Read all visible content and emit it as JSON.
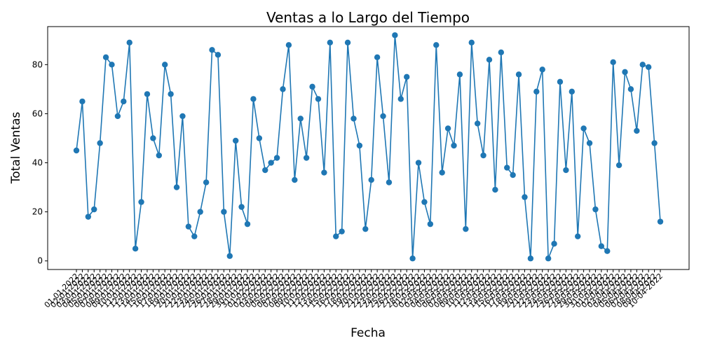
{
  "chart_data": {
    "type": "line",
    "title": "Ventas a lo Largo del Tiempo",
    "xlabel": "Fecha",
    "ylabel": "Total Ventas",
    "y_ticks": [
      0,
      20,
      40,
      60,
      80
    ],
    "x": [
      "01-01-2022",
      "02-01-2022",
      "03-01-2022",
      "04-01-2022",
      "05-01-2022",
      "06-01-2022",
      "07-01-2022",
      "08-01-2022",
      "09-01-2022",
      "10-01-2022",
      "11-01-2022",
      "12-01-2022",
      "13-01-2022",
      "14-01-2022",
      "15-01-2022",
      "16-01-2022",
      "17-01-2022",
      "18-01-2022",
      "19-01-2022",
      "20-01-2022",
      "21-01-2022",
      "22-01-2022",
      "23-01-2022",
      "24-01-2022",
      "25-01-2022",
      "26-01-2022",
      "27-01-2022",
      "28-01-2022",
      "29-01-2022",
      "30-01-2022",
      "31-01-2022",
      "01-02-2022",
      "02-02-2022",
      "03-02-2022",
      "04-02-2022",
      "05-02-2022",
      "06-02-2022",
      "07-02-2022",
      "08-02-2022",
      "09-02-2022",
      "10-02-2022",
      "11-02-2022",
      "12-02-2022",
      "13-02-2022",
      "14-02-2022",
      "15-02-2022",
      "16-02-2022",
      "17-02-2022",
      "18-02-2022",
      "19-02-2022",
      "20-02-2022",
      "21-02-2022",
      "22-02-2022",
      "23-02-2022",
      "24-02-2022",
      "25-02-2022",
      "26-02-2022",
      "27-02-2022",
      "28-02-2022",
      "01-03-2022",
      "02-03-2022",
      "03-03-2022",
      "04-03-2022",
      "05-03-2022",
      "06-03-2022",
      "07-03-2022",
      "08-03-2022",
      "09-03-2022",
      "10-03-2022",
      "11-03-2022",
      "12-03-2022",
      "13-03-2022",
      "14-03-2022",
      "15-03-2022",
      "16-03-2022",
      "17-03-2022",
      "18-03-2022",
      "19-03-2022",
      "20-03-2022",
      "21-03-2022",
      "22-03-2022",
      "23-03-2022",
      "24-03-2022",
      "25-03-2022",
      "26-03-2022",
      "27-03-2022",
      "28-03-2022",
      "29-03-2022",
      "30-03-2022",
      "31-03-2022",
      "01-04-2022",
      "02-04-2022",
      "03-04-2022",
      "04-04-2022",
      "05-04-2022",
      "06-04-2022",
      "07-04-2022",
      "08-04-2022",
      "09-04-2022",
      "10-04-2022"
    ],
    "values": [
      45,
      65,
      18,
      21,
      48,
      83,
      80,
      59,
      65,
      89,
      5,
      24,
      68,
      50,
      43,
      80,
      68,
      30,
      59,
      14,
      10,
      20,
      32,
      86,
      84,
      20,
      2,
      49,
      22,
      15,
      66,
      50,
      37,
      40,
      42,
      70,
      88,
      33,
      58,
      42,
      71,
      66,
      36,
      89,
      10,
      12,
      89,
      58,
      47,
      13,
      33,
      83,
      59,
      32,
      92,
      66,
      75,
      1,
      40,
      24,
      15,
      88,
      36,
      54,
      47,
      76,
      13,
      89,
      56,
      43,
      82,
      29,
      85,
      38,
      35,
      76,
      26,
      1,
      69,
      78,
      1,
      7,
      73,
      37,
      69,
      10,
      54,
      48,
      21,
      6,
      4,
      81,
      39,
      77,
      70,
      53,
      80,
      79,
      48,
      16
    ],
    "ylim": [
      -3.5,
      95.5
    ],
    "color": "#1f77b4",
    "grid": false,
    "legend": "none"
  }
}
